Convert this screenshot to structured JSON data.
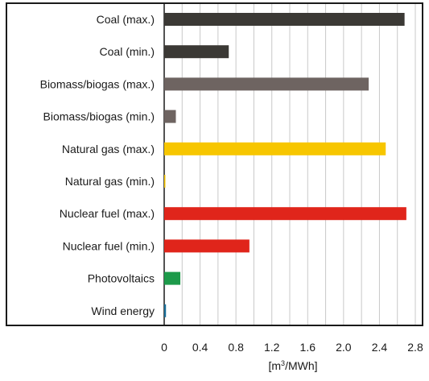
{
  "chart_data": {
    "type": "bar",
    "orientation": "horizontal",
    "title": "",
    "xlabel": "[m3/MWh]",
    "xlabel_base": "[m",
    "xlabel_sup": "3",
    "xlabel_rest": "/MWh]",
    "ylabel": "",
    "xlim": [
      0,
      2.8
    ],
    "x_ticks": [
      "0",
      "0.4",
      "0.8",
      "1.2",
      "1.6",
      "2.0",
      "2.4",
      "2.8"
    ],
    "x_tick_values": [
      0,
      0.4,
      0.8,
      1.2,
      1.6,
      2.0,
      2.4,
      2.8
    ],
    "grid": "vertical",
    "categories": [
      "Coal (max.)",
      "Coal (min.)",
      "Biomass/biogas (max.)",
      "Biomass/biogas (min.)",
      "Natural gas (max.)",
      "Natural gas (min.)",
      "Nuclear fuel (max.)",
      "Nuclear fuel (min.)",
      "Photovoltaics",
      "Wind energy"
    ],
    "values": [
      2.68,
      0.72,
      2.28,
      0.13,
      2.47,
      0.01,
      2.7,
      0.95,
      0.18,
      0.02
    ],
    "colors": [
      "#3b3935",
      "#3b3935",
      "#6e6461",
      "#6e6461",
      "#f7c600",
      "#f7c600",
      "#e0251b",
      "#e0251b",
      "#1d9a4a",
      "#1a6f9a"
    ]
  }
}
